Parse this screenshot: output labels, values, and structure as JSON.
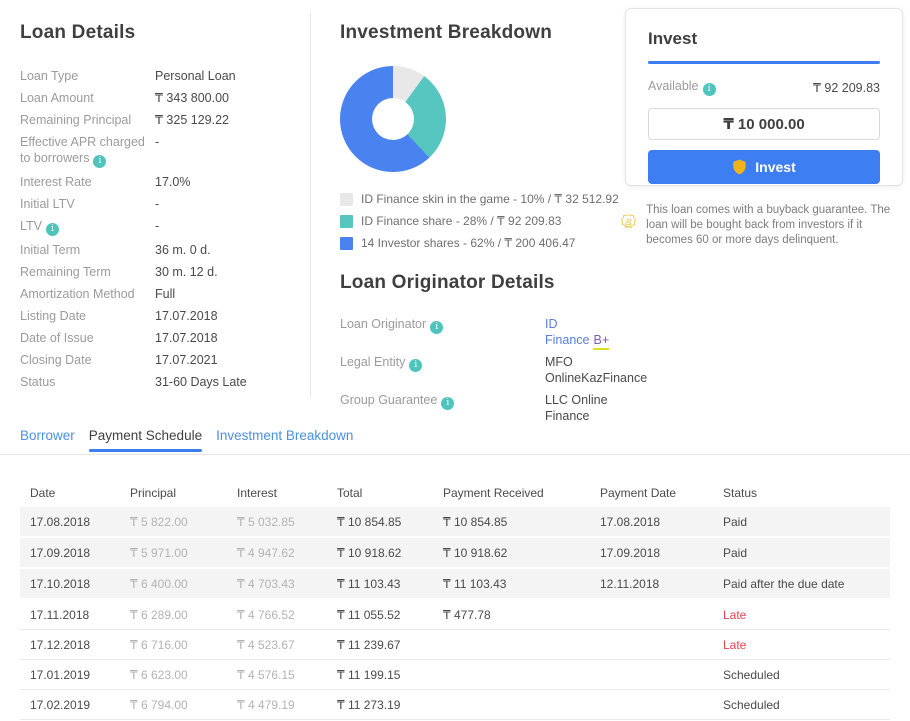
{
  "loan_details": {
    "title": "Loan Details",
    "rows": [
      {
        "label": "Loan Type",
        "value": "Personal Loan"
      },
      {
        "label": "Loan Amount",
        "value": "₸ 343 800.00"
      },
      {
        "label": "Remaining Principal",
        "value": "₸ 325 129.22"
      },
      {
        "label": "Effective APR charged to borrowers",
        "value": "-",
        "info": true
      },
      {
        "label": "Interest Rate",
        "value": "17.0%"
      },
      {
        "label": "Initial LTV",
        "value": "-"
      },
      {
        "label": "LTV",
        "value": "-",
        "info": true
      },
      {
        "label": "Initial Term",
        "value": "36 m. 0 d."
      },
      {
        "label": "Remaining Term",
        "value": "30 m. 12 d."
      },
      {
        "label": "Amortization Method",
        "value": "Full"
      },
      {
        "label": "Listing Date",
        "value": "17.07.2018"
      },
      {
        "label": "Date of Issue",
        "value": "17.07.2018"
      },
      {
        "label": "Closing Date",
        "value": "17.07.2021"
      },
      {
        "label": "Status",
        "value": "31-60 Days Late"
      }
    ]
  },
  "investment_breakdown": {
    "title": "Investment Breakdown",
    "chart_data": {
      "type": "pie",
      "donut": true,
      "start_angle_deg": 0,
      "segments": [
        {
          "name": "ID Finance skin in the game",
          "percent": 10,
          "amount": "₸ 32 512.92",
          "color": "#e8e8e8",
          "legend_label": "ID Finance skin in the game - 10% / ₸ 32 512.92"
        },
        {
          "name": "ID Finance share",
          "percent": 28,
          "amount": "₸ 92 209.83",
          "color": "#57c5c0",
          "legend_label": "ID Finance share - 28% / ₸ 92 209.83"
        },
        {
          "name": "14 Investor shares",
          "percent": 62,
          "amount": "₸ 200 406.47",
          "color": "#4a82f0",
          "legend_label": "14 Investor shares - 62% / ₸ 200 406.47"
        }
      ]
    }
  },
  "loan_originator": {
    "title": "Loan Originator Details",
    "originator_label": "Loan Originator",
    "originator_link": "ID Finance",
    "originator_rating": "B+",
    "legal_entity_label": "Legal Entity",
    "legal_entity_value": "MFO OnlineKazFinance",
    "group_guarantee_label": "Group Guarantee",
    "group_guarantee_value": "LLC Online Finance"
  },
  "invest": {
    "title": "Invest",
    "available_label": "Available",
    "available_value": "₸ 92 209.83",
    "amount_value": "₸ 10 000.00",
    "button_label": "Invest"
  },
  "buyback": {
    "text": "This loan comes with a buyback guarantee. The loan will be bought back from investors if it becomes 60 or more days delinquent."
  },
  "tabs": {
    "items": [
      {
        "label": "Borrower",
        "active": false
      },
      {
        "label": "Payment Schedule",
        "active": true
      },
      {
        "label": "Investment Breakdown",
        "active": false
      }
    ]
  },
  "payment_schedule": {
    "columns": [
      "Date",
      "Principal",
      "Interest",
      "Total",
      "Payment Received",
      "Payment Date",
      "Status"
    ],
    "rows": [
      {
        "date": "17.08.2018",
        "principal": "₸ 5 822.00",
        "interest": "₸ 5 032.85",
        "total": "₸ 10 854.85",
        "payment_received": "₸ 10 854.85",
        "payment_date": "17.08.2018",
        "status": "Paid",
        "shaded": true
      },
      {
        "date": "17.09.2018",
        "principal": "₸ 5 971.00",
        "interest": "₸ 4 947.62",
        "total": "₸ 10 918.62",
        "payment_received": "₸ 10 918.62",
        "payment_date": "17.09.2018",
        "status": "Paid",
        "shaded": true
      },
      {
        "date": "17.10.2018",
        "principal": "₸ 6 400.00",
        "interest": "₸ 4 703.43",
        "total": "₸ 11 103.43",
        "payment_received": "₸ 11 103.43",
        "payment_date": "12.11.2018",
        "status": "Paid after the due date",
        "shaded": true
      },
      {
        "date": "17.11.2018",
        "principal": "₸ 6 289.00",
        "interest": "₸ 4 766.52",
        "total": "₸ 11 055.52",
        "payment_received": "₸ 477.78",
        "payment_date": "",
        "status": "Late",
        "shaded": false,
        "status_color": "#ef4050"
      },
      {
        "date": "17.12.2018",
        "principal": "₸ 6 716.00",
        "interest": "₸ 4 523.67",
        "total": "₸ 11 239.67",
        "payment_received": "",
        "payment_date": "",
        "status": "Late",
        "shaded": false,
        "status_color": "#ef4050"
      },
      {
        "date": "17.01.2019",
        "principal": "₸ 6 623.00",
        "interest": "₸ 4 576.15",
        "total": "₸ 11 199.15",
        "payment_received": "",
        "payment_date": "",
        "status": "Scheduled",
        "shaded": false
      },
      {
        "date": "17.02.2019",
        "principal": "₸ 6 794.00",
        "interest": "₸ 4 479.19",
        "total": "₸ 11 273.19",
        "payment_received": "",
        "payment_date": "",
        "status": "Scheduled",
        "shaded": false
      }
    ]
  },
  "colors": {
    "accent_blue": "#3d7ff2",
    "tab_link_blue": "#4a90e2",
    "late_red": "#ef4050",
    "info_teal": "#4ec4bc",
    "guarantee_gold": "#eac43d"
  }
}
